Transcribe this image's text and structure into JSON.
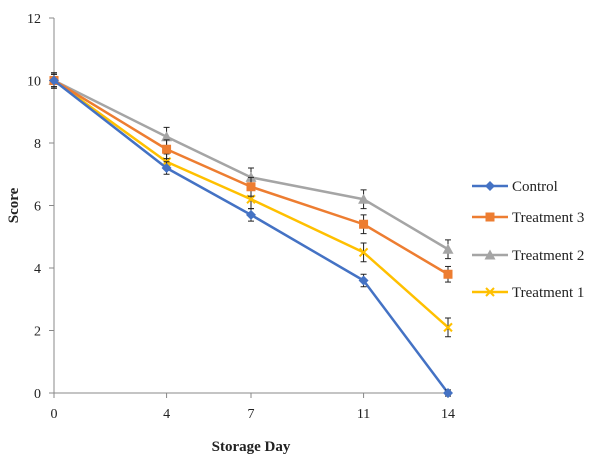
{
  "chart_data": {
    "type": "line",
    "xlabel": "Storage Day",
    "ylabel": "Score",
    "x": [
      0,
      4,
      7,
      11,
      14
    ],
    "ylim": [
      0,
      12
    ],
    "yticks": [
      0,
      2,
      4,
      6,
      8,
      10,
      12
    ],
    "grid": false,
    "legend_position": "right",
    "series": [
      {
        "name": "Control",
        "color": "#4472C4",
        "marker": "diamond",
        "values": [
          10.0,
          7.2,
          5.7,
          3.6,
          0.0
        ],
        "errors": [
          0.2,
          0.2,
          0.2,
          0.2,
          0.1
        ]
      },
      {
        "name": "Treatment 3",
        "color": "#ED7D31",
        "marker": "square",
        "values": [
          10.0,
          7.8,
          6.6,
          5.4,
          3.8
        ],
        "errors": [
          0.2,
          0.3,
          0.3,
          0.3,
          0.25
        ]
      },
      {
        "name": "Treatment 2",
        "color": "#A5A5A5",
        "marker": "triangle",
        "values": [
          10.0,
          8.2,
          6.9,
          6.2,
          4.6
        ],
        "errors": [
          0.25,
          0.3,
          0.3,
          0.3,
          0.3
        ]
      },
      {
        "name": "Treatment 1",
        "color": "#FFC000",
        "marker": "x",
        "values": [
          10.0,
          7.4,
          6.2,
          4.5,
          2.1
        ],
        "errors": [
          0.2,
          0.25,
          0.3,
          0.3,
          0.3
        ]
      }
    ]
  }
}
